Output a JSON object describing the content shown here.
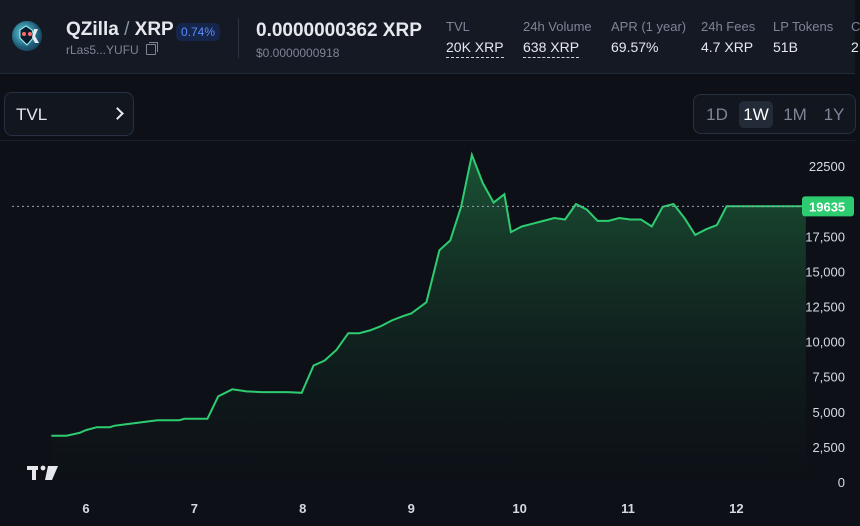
{
  "header": {
    "base_token": "QZilla",
    "separator": "/",
    "quote_token": "XRP",
    "change_badge": "0.74%",
    "address": "rLas5...YUFU",
    "price": "0.0000000362 XRP",
    "price_usd": "$0.0000000918",
    "stats": [
      {
        "label": "TVL",
        "value": "20K XRP"
      },
      {
        "label": "24h Volume",
        "value": "638 XRP"
      },
      {
        "label": "APR (1 year)",
        "value": "69.57%"
      },
      {
        "label": "24h Fees",
        "value": "4.7 XRP"
      },
      {
        "label": "LP Tokens",
        "value": "51B"
      },
      {
        "label": "C",
        "value": "2"
      }
    ]
  },
  "chart_controls": {
    "metric_label": "TVL",
    "ranges": [
      "1D",
      "1W",
      "1M",
      "1Y"
    ],
    "active_range": "1W"
  },
  "colors": {
    "line": "#2ecc71",
    "price_tag": "#2ecc71"
  },
  "watermark_icon": "tradingview-logo-icon",
  "chart_data": {
    "type": "area",
    "x": [
      5.68,
      5.82,
      5.94,
      6.0,
      6.1,
      6.18,
      6.22,
      6.26,
      6.36,
      6.46,
      6.56,
      6.66,
      6.76,
      6.86,
      6.91,
      7.02,
      7.12,
      7.22,
      7.35,
      7.48,
      7.62,
      7.74,
      7.86,
      7.99,
      8.1,
      8.2,
      8.31,
      8.42,
      8.52,
      8.62,
      8.72,
      8.82,
      8.92,
      9.0,
      9.14,
      9.26,
      9.36,
      9.46,
      9.56,
      9.66,
      9.76,
      9.86,
      9.92,
      10.02,
      10.12,
      10.22,
      10.32,
      10.42,
      10.52,
      10.62,
      10.72,
      10.82,
      10.92,
      11.02,
      11.12,
      11.22,
      11.32,
      11.42,
      11.52,
      11.62,
      11.72,
      11.82,
      11.91,
      12.02,
      12.12,
      12.22,
      12.3,
      12.42,
      12.54,
      12.64
    ],
    "y": [
      3300,
      3300,
      3500,
      3700,
      3900,
      3900,
      3900,
      4000,
      4100,
      4200,
      4300,
      4400,
      4400,
      4400,
      4500,
      4500,
      4500,
      6100,
      6600,
      6450,
      6400,
      6400,
      6400,
      6350,
      8300,
      8650,
      9400,
      10600,
      10600,
      10800,
      11100,
      11500,
      11800,
      12000,
      12800,
      16500,
      17200,
      19600,
      23300,
      21300,
      19900,
      20500,
      17800,
      18200,
      18400,
      18600,
      18800,
      18700,
      19800,
      19400,
      18600,
      18600,
      18800,
      18700,
      18700,
      18200,
      19600,
      19800,
      18800,
      17600,
      18000,
      18300,
      19635,
      19635,
      19635,
      19635,
      19635,
      19635,
      19635,
      19635
    ],
    "ylim": [
      0,
      24000
    ],
    "yticks": [
      0,
      2500,
      5000,
      7500,
      10000,
      12500,
      15000,
      17500,
      22500
    ],
    "ytick_labels": [
      "0",
      "2,500",
      "5,000",
      "7,500",
      "10,000",
      "12,500",
      "15,000",
      "17,500",
      "22500"
    ],
    "xticks": [
      6,
      7,
      8,
      9,
      10,
      11,
      12
    ],
    "current_value_label": "19635",
    "current_value": 19635,
    "grid": false,
    "legend": "none"
  }
}
